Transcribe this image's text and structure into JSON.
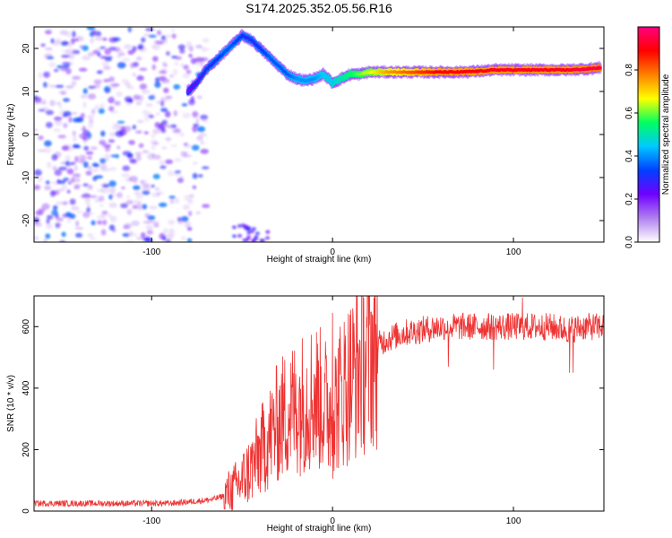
{
  "chart_data": [
    {
      "type": "heatmap",
      "title": "S174.2025.352.05.56.R16",
      "xlabel": "Height of straight line (km)",
      "ylabel": "Frequency (Hz)",
      "xlim": [
        -165,
        150
      ],
      "ylim": [
        -25,
        25
      ],
      "x_ticks": [
        -100,
        0,
        100
      ],
      "y_ticks": [
        -20,
        -10,
        0,
        10,
        20
      ],
      "x_tick_labels": [
        "-100",
        "0",
        "100"
      ],
      "y_tick_labels": [
        "-20",
        "-10",
        "0",
        "10",
        "20"
      ],
      "grid": false,
      "colorbar": {
        "label": "Normalized spectral amplitude",
        "range": [
          0.0,
          1.0
        ],
        "ticks": [
          0.0,
          0.2,
          0.4,
          0.6,
          0.8
        ],
        "tick_labels": [
          "0.0",
          "0.2",
          "0.4",
          "0.6",
          "0.8"
        ],
        "colors": [
          "#ffffff",
          "#b080f0",
          "#7000ff",
          "#0040ff",
          "#00c8ff",
          "#00ff60",
          "#ffff00",
          "#ff8000",
          "#ff0000",
          "#ff0080"
        ]
      },
      "ridge": {
        "description": "dominant frequency track",
        "x": [
          -80,
          -75,
          -70,
          -65,
          -60,
          -55,
          -50,
          -45,
          -40,
          -35,
          -30,
          -25,
          -20,
          -15,
          -10,
          -5,
          0,
          5,
          10,
          15,
          20,
          30,
          40,
          50,
          60,
          70,
          80,
          90,
          100,
          110,
          120,
          130,
          140,
          148
        ],
        "y": [
          10,
          12,
          15,
          17,
          19,
          21,
          23,
          22,
          20,
          18,
          16,
          14,
          13,
          12.5,
          13,
          14,
          12,
          13,
          14,
          14,
          14.5,
          14.5,
          14.5,
          14.5,
          14.5,
          14.5,
          14.7,
          15,
          15,
          15,
          15,
          15,
          15.2,
          15.5
        ],
        "amplitude": [
          0.2,
          0.25,
          0.3,
          0.3,
          0.35,
          0.35,
          0.3,
          0.3,
          0.3,
          0.35,
          0.35,
          0.35,
          0.4,
          0.4,
          0.4,
          0.45,
          0.45,
          0.5,
          0.55,
          0.6,
          0.65,
          0.75,
          0.8,
          0.85,
          0.9,
          0.9,
          0.9,
          0.92,
          0.92,
          0.92,
          0.92,
          0.92,
          0.95,
          0.95
        ]
      },
      "noise_region": {
        "x_range": [
          -165,
          -80
        ],
        "y_range": [
          -25,
          25
        ],
        "amplitude_range": [
          0.0,
          0.25
        ]
      }
    },
    {
      "type": "line",
      "xlabel": "Height of straight line (km)",
      "ylabel": "SNR (10 * v/v)",
      "xlim": [
        -165,
        150
      ],
      "ylim": [
        0,
        700
      ],
      "x_ticks": [
        -100,
        0,
        100
      ],
      "y_ticks": [
        0,
        200,
        400,
        600
      ],
      "x_tick_labels": [
        "-100",
        "0",
        "100"
      ],
      "y_tick_labels": [
        "0",
        "200",
        "400",
        "600"
      ],
      "grid": false,
      "series": [
        {
          "name": "SNR",
          "color": "#ee3333",
          "x": [
            -165,
            -150,
            -140,
            -130,
            -120,
            -110,
            -100,
            -90,
            -80,
            -70,
            -65,
            -60,
            -55,
            -50,
            -45,
            -40,
            -35,
            -30,
            -25,
            -20,
            -15,
            -10,
            -5,
            0,
            5,
            10,
            15,
            20,
            25,
            30,
            40,
            50,
            60,
            70,
            80,
            90,
            100,
            110,
            120,
            130,
            140,
            150
          ],
          "values": [
            25,
            25,
            25,
            25,
            25,
            25,
            25,
            25,
            30,
            35,
            40,
            50,
            70,
            100,
            140,
            190,
            240,
            290,
            320,
            340,
            360,
            380,
            350,
            320,
            390,
            430,
            470,
            510,
            540,
            560,
            580,
            590,
            600,
            600,
            600,
            600,
            600,
            600,
            600,
            590,
            600,
            600
          ]
        }
      ],
      "annotations": [
        {
          "x": 64,
          "value": 470,
          "note": "dip"
        },
        {
          "x": 89,
          "value": 460,
          "note": "dip"
        },
        {
          "x": 131,
          "value": 450,
          "note": "dip"
        },
        {
          "x": 133,
          "value": 450,
          "note": "dip"
        },
        {
          "x": 0,
          "value": 645,
          "note": "spike"
        },
        {
          "x": 105,
          "value": 695,
          "note": "spike"
        }
      ]
    }
  ]
}
